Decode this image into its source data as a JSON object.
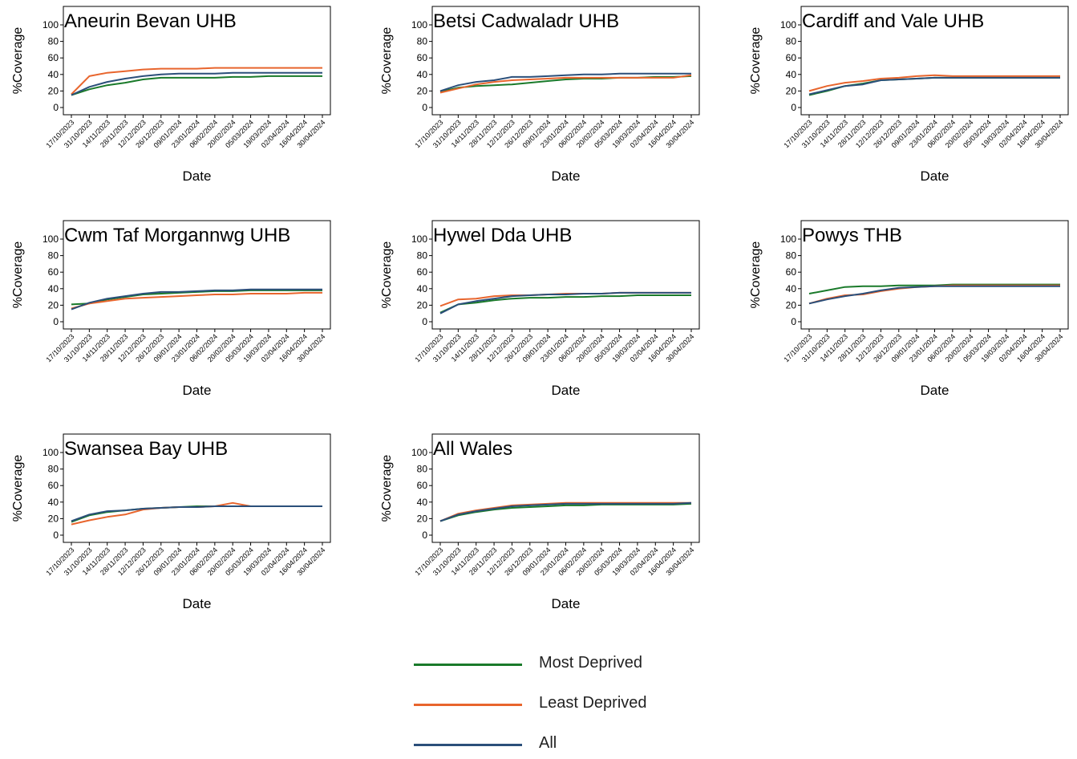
{
  "colors": {
    "most_deprived": "#1a7a2a",
    "least_deprived": "#e8652d",
    "all": "#2b4f7a",
    "axis": "#000000"
  },
  "legend": {
    "items": [
      {
        "key": "most_deprived",
        "label": "Most Deprived"
      },
      {
        "key": "least_deprived",
        "label": "Least Deprived"
      },
      {
        "key": "all",
        "label": "All"
      }
    ]
  },
  "chart_data": [
    {
      "type": "line",
      "title": "Aneurin Bevan UHB",
      "xlabel": "Date",
      "ylabel": "%Coverage",
      "ylim": [
        0,
        100
      ],
      "yticks": [
        0,
        20,
        40,
        60,
        80,
        100
      ],
      "x_tick_labels": [
        "17/10/2023",
        "31/10/2023",
        "14/11/2023",
        "28/11/2023",
        "12/12/2023",
        "26/12/2023",
        "09/01/2024",
        "23/01/2024",
        "06/02/2024",
        "20/02/2024",
        "05/03/2024",
        "19/03/2024",
        "02/04/2024",
        "16/04/2024",
        "30/04/2024"
      ],
      "series": [
        {
          "key": "most_deprived",
          "values": [
            15,
            22,
            27,
            30,
            34,
            36,
            36,
            36,
            36,
            37,
            37,
            38,
            38,
            38,
            38
          ]
        },
        {
          "key": "least_deprived",
          "values": [
            16,
            38,
            42,
            44,
            46,
            47,
            47,
            47,
            48,
            48,
            48,
            48,
            48,
            48,
            48
          ]
        },
        {
          "key": "all",
          "values": [
            15,
            25,
            31,
            35,
            38,
            40,
            41,
            41,
            41,
            42,
            42,
            42,
            42,
            42,
            42
          ]
        }
      ]
    },
    {
      "type": "line",
      "title": "Betsi Cadwaladr UHB",
      "xlabel": "Date",
      "ylabel": "%Coverage",
      "ylim": [
        0,
        100
      ],
      "yticks": [
        0,
        20,
        40,
        60,
        80,
        100
      ],
      "x_tick_labels": [
        "17/10/2023",
        "31/10/2023",
        "14/11/2023",
        "28/11/2023",
        "12/12/2023",
        "26/12/2023",
        "09/01/2024",
        "23/01/2024",
        "06/02/2024",
        "20/02/2024",
        "05/03/2024",
        "19/03/2024",
        "02/04/2024",
        "16/04/2024",
        "30/04/2024"
      ],
      "series": [
        {
          "key": "most_deprived",
          "values": [
            19,
            24,
            26,
            27,
            28,
            30,
            32,
            34,
            35,
            35,
            36,
            36,
            37,
            37,
            38
          ]
        },
        {
          "key": "least_deprived",
          "values": [
            18,
            23,
            28,
            31,
            33,
            34,
            35,
            36,
            36,
            36,
            36,
            36,
            36,
            36,
            39
          ]
        },
        {
          "key": "all",
          "values": [
            20,
            27,
            31,
            33,
            37,
            37,
            38,
            39,
            40,
            40,
            41,
            41,
            41,
            41,
            41
          ]
        }
      ]
    },
    {
      "type": "line",
      "title": "Cardiff and Vale UHB",
      "xlabel": "Date",
      "ylabel": "%Coverage",
      "ylim": [
        0,
        100
      ],
      "yticks": [
        0,
        20,
        40,
        60,
        80,
        100
      ],
      "x_tick_labels": [
        "17/10/2023",
        "31/10/2023",
        "14/11/2023",
        "28/11/2023",
        "12/12/2023",
        "26/12/2023",
        "09/01/2024",
        "23/01/2024",
        "06/02/2024",
        "20/02/2024",
        "05/03/2024",
        "19/03/2024",
        "02/04/2024",
        "16/04/2024",
        "30/04/2024"
      ],
      "series": [
        {
          "key": "most_deprived",
          "values": [
            15,
            20,
            26,
            29,
            33,
            34,
            35,
            36,
            36,
            36,
            36,
            36,
            36,
            36,
            36
          ]
        },
        {
          "key": "least_deprived",
          "values": [
            20,
            26,
            30,
            32,
            35,
            36,
            38,
            39,
            38,
            38,
            38,
            38,
            38,
            38,
            38
          ]
        },
        {
          "key": "all",
          "values": [
            16,
            21,
            26,
            28,
            33,
            34,
            35,
            36,
            36,
            36,
            36,
            36,
            36,
            36,
            36
          ]
        }
      ]
    },
    {
      "type": "line",
      "title": "Cwm Taf Morgannwg UHB",
      "xlabel": "Date",
      "ylabel": "%Coverage",
      "ylim": [
        0,
        100
      ],
      "yticks": [
        0,
        20,
        40,
        60,
        80,
        100
      ],
      "x_tick_labels": [
        "17/10/2023",
        "31/10/2023",
        "14/11/2023",
        "28/11/2023",
        "12/12/2023",
        "26/12/2023",
        "09/01/2024",
        "23/01/2024",
        "06/02/2024",
        "20/02/2024",
        "05/03/2024",
        "19/03/2024",
        "02/04/2024",
        "16/04/2024",
        "30/04/2024"
      ],
      "series": [
        {
          "key": "most_deprived",
          "values": [
            21,
            22,
            27,
            30,
            33,
            34,
            35,
            36,
            37,
            37,
            38,
            38,
            38,
            38,
            38
          ]
        },
        {
          "key": "least_deprived",
          "values": [
            16,
            22,
            25,
            28,
            29,
            30,
            31,
            32,
            33,
            33,
            34,
            34,
            34,
            35,
            35
          ]
        },
        {
          "key": "all",
          "values": [
            15,
            23,
            28,
            31,
            34,
            36,
            36,
            37,
            38,
            38,
            39,
            39,
            39,
            39,
            39
          ]
        }
      ]
    },
    {
      "type": "line",
      "title": "Hywel Dda UHB",
      "xlabel": "Date",
      "ylabel": "%Coverage",
      "ylim": [
        0,
        100
      ],
      "yticks": [
        0,
        20,
        40,
        60,
        80,
        100
      ],
      "x_tick_labels": [
        "17/10/2023",
        "31/10/2023",
        "14/11/2023",
        "28/11/2023",
        "12/12/2023",
        "26/12/2023",
        "09/01/2024",
        "23/01/2024",
        "06/02/2024",
        "20/02/2024",
        "05/03/2024",
        "19/03/2024",
        "02/04/2024",
        "16/04/2024",
        "30/04/2024"
      ],
      "series": [
        {
          "key": "most_deprived",
          "values": [
            11,
            21,
            23,
            26,
            28,
            29,
            29,
            30,
            30,
            31,
            31,
            32,
            32,
            32,
            32
          ]
        },
        {
          "key": "least_deprived",
          "values": [
            19,
            27,
            28,
            31,
            32,
            32,
            33,
            34,
            34,
            34,
            35,
            35,
            35,
            35,
            35
          ]
        },
        {
          "key": "all",
          "values": [
            10,
            21,
            25,
            28,
            31,
            32,
            33,
            33,
            34,
            34,
            35,
            35,
            35,
            35,
            35
          ]
        }
      ]
    },
    {
      "type": "line",
      "title": "Powys THB",
      "xlabel": "Date",
      "ylabel": "%Coverage",
      "ylim": [
        0,
        100
      ],
      "yticks": [
        0,
        20,
        40,
        60,
        80,
        100
      ],
      "x_tick_labels": [
        "17/10/2023",
        "31/10/2023",
        "14/11/2023",
        "28/11/2023",
        "12/12/2023",
        "26/12/2023",
        "09/01/2024",
        "23/01/2024",
        "06/02/2024",
        "20/02/2024",
        "05/03/2024",
        "19/03/2024",
        "02/04/2024",
        "16/04/2024",
        "30/04/2024"
      ],
      "series": [
        {
          "key": "most_deprived",
          "values": [
            34,
            38,
            42,
            43,
            43,
            44,
            44,
            44,
            45,
            45,
            45,
            45,
            45,
            45,
            45
          ]
        },
        {
          "key": "least_deprived",
          "values": [
            22,
            28,
            32,
            33,
            37,
            40,
            42,
            43,
            44,
            44,
            44,
            44,
            44,
            44,
            44
          ]
        },
        {
          "key": "all",
          "values": [
            22,
            27,
            31,
            34,
            38,
            41,
            42,
            43,
            43,
            43,
            43,
            43,
            43,
            43,
            43
          ]
        }
      ]
    },
    {
      "type": "line",
      "title": "Swansea Bay UHB",
      "xlabel": "Date",
      "ylabel": "%Coverage",
      "ylim": [
        0,
        100
      ],
      "yticks": [
        0,
        20,
        40,
        60,
        80,
        100
      ],
      "x_tick_labels": [
        "17/10/2023",
        "31/10/2023",
        "14/11/2023",
        "28/11/2023",
        "12/12/2023",
        "26/12/2023",
        "09/01/2024",
        "23/01/2024",
        "06/02/2024",
        "20/02/2024",
        "05/03/2024",
        "19/03/2024",
        "02/04/2024",
        "16/04/2024",
        "30/04/2024"
      ],
      "series": [
        {
          "key": "most_deprived",
          "values": [
            16,
            24,
            28,
            30,
            32,
            33,
            34,
            35,
            35,
            35,
            35,
            35,
            35,
            35,
            35
          ]
        },
        {
          "key": "least_deprived",
          "values": [
            13,
            18,
            22,
            25,
            31,
            33,
            34,
            34,
            35,
            39,
            35,
            35,
            35,
            35,
            35
          ]
        },
        {
          "key": "all",
          "values": [
            17,
            25,
            29,
            30,
            32,
            33,
            34,
            34,
            35,
            35,
            35,
            35,
            35,
            35,
            35
          ]
        }
      ]
    },
    {
      "type": "line",
      "title": "All Wales",
      "xlabel": "Date",
      "ylabel": "%Coverage",
      "ylim": [
        0,
        100
      ],
      "yticks": [
        0,
        20,
        40,
        60,
        80,
        100
      ],
      "x_tick_labels": [
        "17/10/2023",
        "31/10/2023",
        "14/11/2023",
        "28/11/2023",
        "12/12/2023",
        "26/12/2023",
        "09/01/2024",
        "23/01/2024",
        "06/02/2024",
        "20/02/2024",
        "05/03/2024",
        "19/03/2024",
        "02/04/2024",
        "16/04/2024",
        "30/04/2024"
      ],
      "series": [
        {
          "key": "most_deprived",
          "values": [
            17,
            24,
            28,
            31,
            33,
            34,
            35,
            36,
            36,
            37,
            37,
            37,
            37,
            37,
            38
          ]
        },
        {
          "key": "least_deprived",
          "values": [
            17,
            26,
            30,
            33,
            36,
            37,
            38,
            39,
            39,
            39,
            39,
            39,
            39,
            39,
            39
          ]
        },
        {
          "key": "all",
          "values": [
            17,
            25,
            29,
            32,
            35,
            36,
            37,
            38,
            38,
            38,
            38,
            38,
            38,
            38,
            39
          ]
        }
      ]
    }
  ]
}
